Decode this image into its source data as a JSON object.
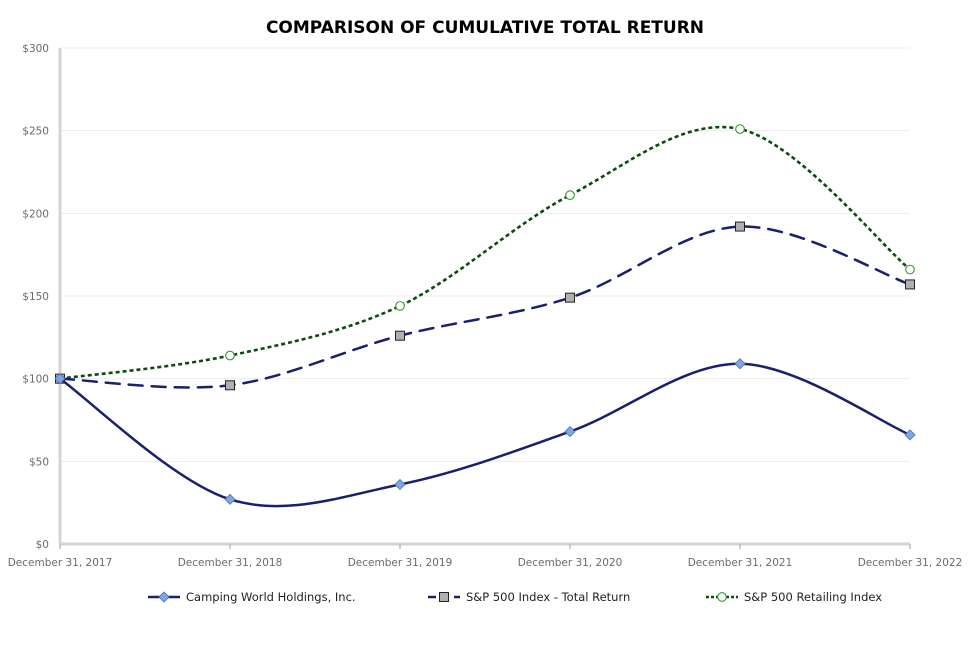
{
  "chart_data": {
    "type": "line",
    "title": "COMPARISON OF CUMULATIVE TOTAL RETURN",
    "xlabel": "",
    "ylabel": "",
    "categories": [
      "December 31, 2017",
      "December 31, 2018",
      "December 31, 2019",
      "December 31, 2020",
      "December 31, 2021",
      "December 31, 2022"
    ],
    "y_ticks": [
      "$0",
      "$50",
      "$100",
      "$150",
      "$200",
      "$250",
      "$300"
    ],
    "ylim": [
      0,
      300
    ],
    "grid": true,
    "legend_position": "bottom",
    "series": [
      {
        "name": "Camping World Holdings, Inc.",
        "values": [
          100,
          27,
          36,
          68,
          109,
          66
        ],
        "color": "#1a1f6e",
        "marker_color": "#7ea6e0",
        "line_style": "solid",
        "marker": "diamond"
      },
      {
        "name": "S&P 500 Index - Total Return",
        "values": [
          100,
          96,
          126,
          149,
          192,
          157
        ],
        "color": "#1a1f6e",
        "marker_color": "#b0b0b0",
        "line_style": "dashed",
        "marker": "square"
      },
      {
        "name": "S&P 500 Retailing Index",
        "values": [
          100,
          114,
          144,
          211,
          251,
          166
        ],
        "color": "#0d4a0d",
        "marker_color": "#ffffff",
        "line_style": "dotted",
        "marker": "circle"
      }
    ]
  }
}
